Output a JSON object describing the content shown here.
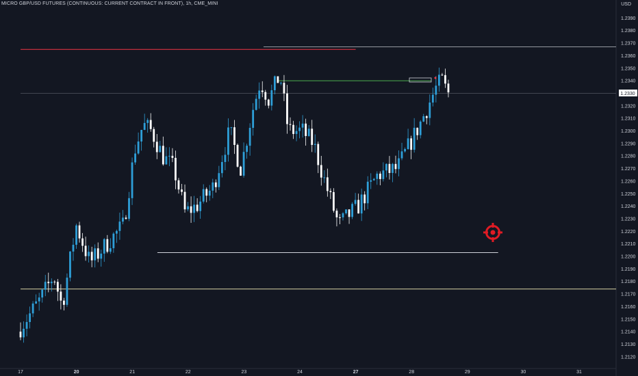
{
  "header": {
    "symbol_title": "MICRO GBP/USD FUTURES (CONTINUOUS: CURRENT CONTRACT IN FRONT), 1h, CME_MINI"
  },
  "axis": {
    "unit": "USD",
    "current_price_label": "1.2330"
  },
  "colors": {
    "background": "#131722",
    "bull": "#2e9fd8",
    "bear": "#ffffff",
    "grid_text": "#d1d4dc",
    "resistance": "#f23645",
    "target_line": "#4caf50",
    "target_icon": "#e01b24"
  },
  "chart_data": {
    "type": "candlestick",
    "title": "MICRO GBP/USD FUTURES (CONTINUOUS: CURRENT CONTRACT IN FRONT), 1h, CME_MINI",
    "ylim": [
      1.2115,
      1.24
    ],
    "y_ticks": [
      "1.2390",
      "1.2380",
      "1.2370",
      "1.2360",
      "1.2350",
      "1.2340",
      "1.2330",
      "1.2320",
      "1.2310",
      "1.2300",
      "1.2290",
      "1.2280",
      "1.2270",
      "1.2260",
      "1.2250",
      "1.2240",
      "1.2230",
      "1.2220",
      "1.2210",
      "1.2200",
      "1.2190",
      "1.2180",
      "1.2170",
      "1.2160",
      "1.2150",
      "1.2140",
      "1.2130",
      "1.2120"
    ],
    "x_ticks": [
      "17",
      "20",
      "21",
      "22",
      "23",
      "24",
      "27",
      "28",
      "29",
      "30",
      "31"
    ],
    "x_tick_bold": [
      "20",
      "27"
    ],
    "levels": [
      {
        "price": 1.2365,
        "color": "#f23645",
        "x_from": 0,
        "x_to": 6.0
      },
      {
        "price": 1.234,
        "color": "#4caf50",
        "x_from": 4.6,
        "x_to": 7.35
      },
      {
        "price": 1.2203,
        "color": "#d1d4dc",
        "x_from": 2.45,
        "x_to": 8.55
      },
      {
        "price": 1.2174,
        "color": "#d9d3a3",
        "x_from": 0,
        "x_to": 11.2
      },
      {
        "price": 1.2367,
        "color": "#9598a1",
        "x_from": 4.35,
        "x_to": 11.2
      },
      {
        "price": 1.233,
        "color": "#434651",
        "x_from": 0,
        "x_to": 11.2
      }
    ],
    "waypoints": [
      [
        0.0,
        1.214
      ],
      [
        0.4,
        1.2165
      ],
      [
        0.65,
        1.2185
      ],
      [
        0.8,
        1.216
      ],
      [
        1.05,
        1.2225
      ],
      [
        1.3,
        1.2195
      ],
      [
        1.6,
        1.221
      ],
      [
        1.9,
        1.2225
      ],
      [
        2.1,
        1.2285
      ],
      [
        2.25,
        1.2305
      ],
      [
        2.4,
        1.23
      ],
      [
        2.6,
        1.228
      ],
      [
        2.8,
        1.227
      ],
      [
        3.0,
        1.2235
      ],
      [
        3.2,
        1.224
      ],
      [
        3.5,
        1.2255
      ],
      [
        3.8,
        1.23
      ],
      [
        4.0,
        1.227
      ],
      [
        4.2,
        1.2315
      ],
      [
        4.35,
        1.234
      ],
      [
        4.5,
        1.2325
      ],
      [
        4.7,
        1.2345
      ],
      [
        4.85,
        1.23
      ],
      [
        5.1,
        1.23
      ],
      [
        5.3,
        1.229
      ],
      [
        5.5,
        1.226
      ],
      [
        5.75,
        1.2225
      ],
      [
        6.1,
        1.224
      ],
      [
        6.45,
        1.2265
      ],
      [
        6.8,
        1.227
      ],
      [
        7.2,
        1.2305
      ],
      [
        7.5,
        1.2335
      ],
      [
        7.6,
        1.234
      ],
      [
        7.7,
        1.233
      ]
    ]
  }
}
